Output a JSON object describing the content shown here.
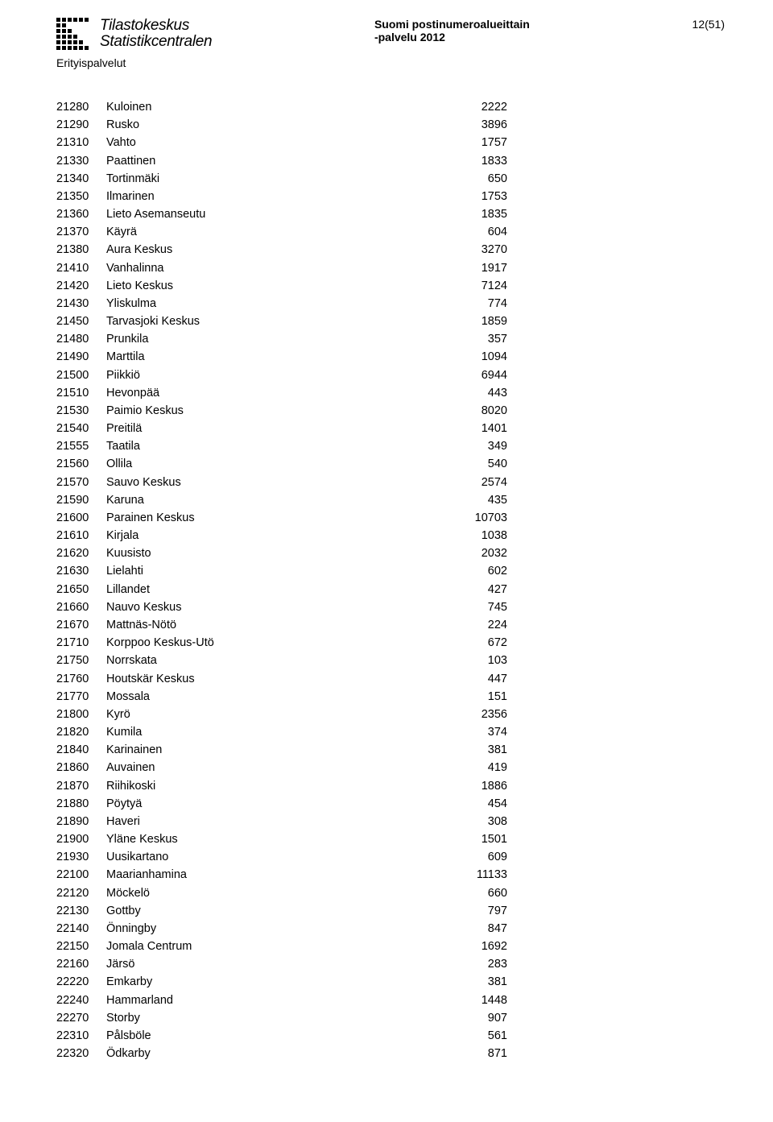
{
  "header": {
    "logo_line1": "Tilastokeskus",
    "logo_line2": "Statistikcentralen",
    "doc_title_line1": "Suomi postinumeroalueittain",
    "doc_title_line2": "-palvelu 2012",
    "page_number": "12(51)",
    "subtitle": "Erityispalvelut"
  },
  "rows": [
    {
      "code": "21280",
      "name": "Kuloinen",
      "value": "2222"
    },
    {
      "code": "21290",
      "name": "Rusko",
      "value": "3896"
    },
    {
      "code": "21310",
      "name": "Vahto",
      "value": "1757"
    },
    {
      "code": "21330",
      "name": "Paattinen",
      "value": "1833"
    },
    {
      "code": "21340",
      "name": "Tortinmäki",
      "value": "650"
    },
    {
      "code": "21350",
      "name": "Ilmarinen",
      "value": "1753"
    },
    {
      "code": "21360",
      "name": "Lieto Asemanseutu",
      "value": "1835"
    },
    {
      "code": "21370",
      "name": "Käyrä",
      "value": "604"
    },
    {
      "code": "21380",
      "name": "Aura Keskus",
      "value": "3270"
    },
    {
      "code": "21410",
      "name": "Vanhalinna",
      "value": "1917"
    },
    {
      "code": "21420",
      "name": "Lieto Keskus",
      "value": "7124"
    },
    {
      "code": "21430",
      "name": "Yliskulma",
      "value": "774"
    },
    {
      "code": "21450",
      "name": "Tarvasjoki Keskus",
      "value": "1859"
    },
    {
      "code": "21480",
      "name": "Prunkila",
      "value": "357"
    },
    {
      "code": "21490",
      "name": "Marttila",
      "value": "1094"
    },
    {
      "code": "21500",
      "name": "Piikkiö",
      "value": "6944"
    },
    {
      "code": "21510",
      "name": "Hevonpää",
      "value": "443"
    },
    {
      "code": "21530",
      "name": "Paimio Keskus",
      "value": "8020"
    },
    {
      "code": "21540",
      "name": "Preitilä",
      "value": "1401"
    },
    {
      "code": "21555",
      "name": "Taatila",
      "value": "349"
    },
    {
      "code": "21560",
      "name": "Ollila",
      "value": "540"
    },
    {
      "code": "21570",
      "name": "Sauvo Keskus",
      "value": "2574"
    },
    {
      "code": "21590",
      "name": "Karuna",
      "value": "435"
    },
    {
      "code": "21600",
      "name": "Parainen Keskus",
      "value": "10703"
    },
    {
      "code": "21610",
      "name": "Kirjala",
      "value": "1038"
    },
    {
      "code": "21620",
      "name": "Kuusisto",
      "value": "2032"
    },
    {
      "code": "21630",
      "name": "Lielahti",
      "value": "602"
    },
    {
      "code": "21650",
      "name": "Lillandet",
      "value": "427"
    },
    {
      "code": "21660",
      "name": "Nauvo Keskus",
      "value": "745"
    },
    {
      "code": "21670",
      "name": "Mattnäs-Nötö",
      "value": "224"
    },
    {
      "code": "21710",
      "name": "Korppoo Keskus-Utö",
      "value": "672"
    },
    {
      "code": "21750",
      "name": "Norrskata",
      "value": "103"
    },
    {
      "code": "21760",
      "name": "Houtskär Keskus",
      "value": "447"
    },
    {
      "code": "21770",
      "name": "Mossala",
      "value": "151"
    },
    {
      "code": "21800",
      "name": "Kyrö",
      "value": "2356"
    },
    {
      "code": "21820",
      "name": "Kumila",
      "value": "374"
    },
    {
      "code": "21840",
      "name": "Karinainen",
      "value": "381"
    },
    {
      "code": "21860",
      "name": "Auvainen",
      "value": "419"
    },
    {
      "code": "21870",
      "name": "Riihikoski",
      "value": "1886"
    },
    {
      "code": "21880",
      "name": "Pöytyä",
      "value": "454"
    },
    {
      "code": "21890",
      "name": "Haveri",
      "value": "308"
    },
    {
      "code": "21900",
      "name": "Yläne Keskus",
      "value": "1501"
    },
    {
      "code": "21930",
      "name": "Uusikartano",
      "value": "609"
    },
    {
      "code": "22100",
      "name": "Maarianhamina",
      "value": "11133"
    },
    {
      "code": "22120",
      "name": "Möckelö",
      "value": "660"
    },
    {
      "code": "22130",
      "name": "Gottby",
      "value": "797"
    },
    {
      "code": "22140",
      "name": "Önningby",
      "value": "847"
    },
    {
      "code": "22150",
      "name": "Jomala Centrum",
      "value": "1692"
    },
    {
      "code": "22160",
      "name": "Järsö",
      "value": "283"
    },
    {
      "code": "22220",
      "name": "Emkarby",
      "value": "381"
    },
    {
      "code": "22240",
      "name": "Hammarland",
      "value": "1448"
    },
    {
      "code": "22270",
      "name": "Storby",
      "value": "907"
    },
    {
      "code": "22310",
      "name": "Pålsböle",
      "value": "561"
    },
    {
      "code": "22320",
      "name": "Ödkarby",
      "value": "871"
    }
  ]
}
